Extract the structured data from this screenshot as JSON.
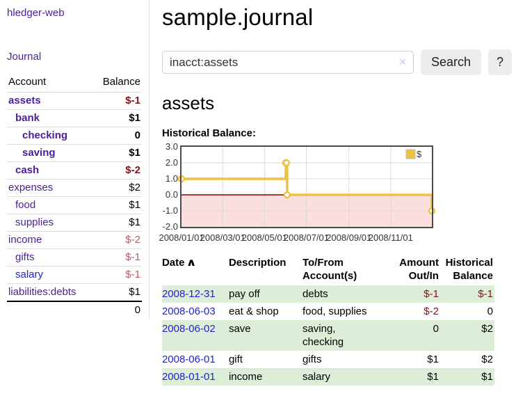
{
  "colors": {
    "link_purple": "#4c1e9b",
    "link_blue": "#2222cc",
    "negative_dark": "#82131a",
    "negative_soft": "#b26066",
    "row_highlight_green": "#ddeed8",
    "chart_line_yellow": "#edc240",
    "chart_negative_fill": "#fbdede",
    "chart_zero_line": "#8b0000"
  },
  "sidebar": {
    "brand": "hledger-web",
    "nav_journal": "Journal",
    "accounts_table": {
      "headers": [
        "Account",
        "Balance"
      ],
      "rows": [
        {
          "account": "assets",
          "indent": 0,
          "bold": true,
          "balance": "$-1",
          "balance_tone": "negative_dark",
          "link_tone": "purple"
        },
        {
          "account": "bank",
          "indent": 1,
          "bold": true,
          "balance": "$1",
          "balance_tone": "normal",
          "link_tone": "purple"
        },
        {
          "account": "checking",
          "indent": 2,
          "bold": true,
          "balance": "0",
          "balance_tone": "normal",
          "link_tone": "purple"
        },
        {
          "account": "saving",
          "indent": 2,
          "bold": true,
          "balance": "$1",
          "balance_tone": "normal",
          "link_tone": "purple"
        },
        {
          "account": "cash",
          "indent": 1,
          "bold": true,
          "balance": "$-2",
          "balance_tone": "negative_dark",
          "link_tone": "purple"
        },
        {
          "account": "expenses",
          "indent": 0,
          "bold": false,
          "balance": "$2",
          "balance_tone": "normal",
          "link_tone": "purple"
        },
        {
          "account": "food",
          "indent": 1,
          "bold": false,
          "balance": "$1",
          "balance_tone": "normal",
          "link_tone": "purple"
        },
        {
          "account": "supplies",
          "indent": 1,
          "bold": false,
          "balance": "$1",
          "balance_tone": "normal",
          "link_tone": "purple"
        },
        {
          "account": "income",
          "indent": 0,
          "bold": false,
          "balance": "$-2",
          "balance_tone": "negative_soft",
          "link_tone": "purple"
        },
        {
          "account": "gifts",
          "indent": 1,
          "bold": false,
          "balance": "$-1",
          "balance_tone": "negative_soft",
          "link_tone": "purple"
        },
        {
          "account": "salary",
          "indent": 1,
          "bold": false,
          "balance": "$-1",
          "balance_tone": "negative_soft",
          "link_tone": "blue"
        },
        {
          "account": "liabilities:debts",
          "indent": 0,
          "bold": false,
          "balance": "$1",
          "balance_tone": "normal",
          "link_tone": "purple"
        }
      ],
      "total": "0"
    }
  },
  "main": {
    "title": "sample.journal",
    "search": {
      "value": "inacct:assets",
      "clear_icon": "✕",
      "button_label": "Search",
      "help_label": "?"
    },
    "account_heading": "assets",
    "section_label": "Historical Balance:"
  },
  "chart_data": {
    "type": "line",
    "step": true,
    "title": "Historical Balance",
    "series": [
      {
        "name": "$",
        "color": "#edc240",
        "x": [
          "2008-01-01",
          "2008-06-01",
          "2008-06-02",
          "2008-06-03",
          "2008-12-31"
        ],
        "y": [
          1,
          2,
          2,
          0,
          -1
        ]
      }
    ],
    "xlim": [
      "2008-01-01",
      "2008-12-31"
    ],
    "ylim": [
      -2,
      3
    ],
    "yticks": [
      3,
      2,
      1,
      0,
      -1,
      -2
    ],
    "ytick_labels": [
      "3.0",
      "2.0",
      "1.0",
      "0.0",
      "-1.0",
      "-2.0"
    ],
    "xticks": [
      {
        "date": "2008-01-01",
        "label": "2008/01/01"
      },
      {
        "date": "2008-03-01",
        "label": "2008/03/01"
      },
      {
        "date": "2008-05-01",
        "label": "2008/05/01"
      },
      {
        "date": "2008-07-01",
        "label": "2008/07/01"
      },
      {
        "date": "2008-09-01",
        "label": "2008/09/01"
      },
      {
        "date": "2008-11-01",
        "label": "2008/11/01"
      }
    ],
    "grid": true,
    "legend": {
      "position": "top-right",
      "entries": [
        {
          "label": "$",
          "color": "#edc240"
        }
      ]
    },
    "negative_region_fill": "#fbdede",
    "zero_line_color": "#8b0000"
  },
  "register": {
    "headers": [
      "Date",
      "Description",
      "To/From Account(s)",
      "Amount Out/In",
      "Historical Balance"
    ],
    "sort_icon": "∧",
    "rows": [
      {
        "date": "2008-12-31",
        "description": "pay off",
        "accounts": "debts",
        "amount": "$-1",
        "amount_tone": "negative",
        "balance": "$-1",
        "balance_tone": "negative",
        "highlight": true
      },
      {
        "date": "2008-06-03",
        "description": "eat & shop",
        "accounts": "food, supplies",
        "amount": "$-2",
        "amount_tone": "negative",
        "balance": "0",
        "balance_tone": "normal",
        "highlight": false
      },
      {
        "date": "2008-06-02",
        "description": "save",
        "accounts": "saving, checking",
        "amount": "0",
        "amount_tone": "normal",
        "balance": "$2",
        "balance_tone": "normal",
        "highlight": true
      },
      {
        "date": "2008-06-01",
        "description": "gift",
        "accounts": "gifts",
        "amount": "$1",
        "amount_tone": "normal",
        "balance": "$2",
        "balance_tone": "normal",
        "highlight": false
      },
      {
        "date": "2008-01-01",
        "description": "income",
        "accounts": "salary",
        "amount": "$1",
        "amount_tone": "normal",
        "balance": "$1",
        "balance_tone": "normal",
        "highlight": true
      }
    ]
  }
}
